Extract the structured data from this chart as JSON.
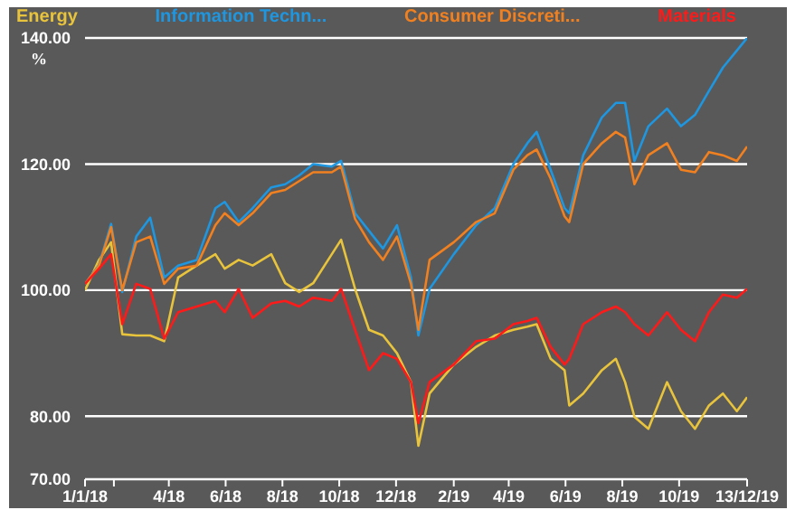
{
  "chart_data": {
    "type": "line",
    "ylabel": "%",
    "x": [
      "2018-01-01",
      "2018-01-16",
      "2018-01-29",
      "2018-02-10",
      "2018-02-25",
      "2018-03-12",
      "2018-03-27",
      "2018-04-11",
      "2018-05-01",
      "2018-05-21",
      "2018-05-31",
      "2018-06-15",
      "2018-06-30",
      "2018-07-20",
      "2018-08-04",
      "2018-08-19",
      "2018-09-03",
      "2018-09-23",
      "2018-10-03",
      "2018-10-18",
      "2018-11-02",
      "2018-11-17",
      "2018-12-02",
      "2018-12-17",
      "2018-12-25",
      "2019-01-06",
      "2019-02-01",
      "2019-02-25",
      "2019-03-17",
      "2019-04-06",
      "2019-04-21",
      "2019-05-01",
      "2019-05-16",
      "2019-05-31",
      "2019-06-05",
      "2019-06-20",
      "2019-07-10",
      "2019-07-25",
      "2019-08-04",
      "2019-08-14",
      "2019-08-29",
      "2019-09-18",
      "2019-10-03",
      "2019-10-18",
      "2019-11-02",
      "2019-11-17",
      "2019-12-02",
      "2019-12-13"
    ],
    "series": [
      {
        "name": "Energy",
        "color": "#e8c33c",
        "values": [
          100,
          104.8,
          107.6,
          93,
          92.8,
          92.8,
          91.9,
          102,
          103.9,
          105.7,
          103.4,
          104.8,
          103.9,
          105.7,
          101.1,
          99.7,
          101.1,
          105.7,
          108,
          100.2,
          93.7,
          92.8,
          90,
          85.4,
          75.3,
          83.6,
          88.2,
          91,
          92.8,
          93.7,
          94.2,
          94.6,
          89.1,
          87.3,
          81.7,
          83.6,
          87.3,
          89.1,
          85.4,
          79.9,
          78,
          85.4,
          80.8,
          78,
          81.7,
          83.6,
          80.8,
          83
        ]
      },
      {
        "name": "Information Techn...",
        "color": "#1e96e0",
        "values": [
          101,
          104,
          110.5,
          99.7,
          108.5,
          111.5,
          102,
          103.9,
          104.8,
          113,
          114,
          110.8,
          113,
          116.3,
          116.8,
          118.2,
          120,
          119.6,
          120.5,
          112.2,
          109.4,
          106.6,
          110.3,
          102,
          92.8,
          100.2,
          105.7,
          110.3,
          113,
          120,
          123.3,
          125.1,
          119.1,
          113,
          112.2,
          121.4,
          127.4,
          129.7,
          129.7,
          120.5,
          126,
          128.8,
          126,
          127.8,
          131.6,
          135.3,
          138,
          140
        ]
      },
      {
        "name": "Consumer Discreti...",
        "color": "#f08020",
        "values": [
          101,
          103.9,
          110,
          100,
          107.6,
          108.5,
          101,
          103.4,
          103.9,
          110.3,
          112.2,
          110.3,
          112.2,
          115.4,
          115.9,
          117.3,
          118.7,
          118.7,
          119.6,
          111.3,
          107.6,
          104.8,
          108.5,
          101,
          93.7,
          104.8,
          107.6,
          110.8,
          112.2,
          119.1,
          121.4,
          122.3,
          117.7,
          111.7,
          110.8,
          120,
          123.3,
          125.1,
          124.2,
          116.8,
          121.4,
          123.3,
          119.1,
          118.7,
          121.9,
          121.4,
          120.5,
          122.8
        ]
      },
      {
        "name": "Materials",
        "color": "#ff1a1a",
        "values": [
          101,
          103.4,
          105.7,
          94.6,
          101,
          100.2,
          92.3,
          96.5,
          97.4,
          98.3,
          96.5,
          100.2,
          95.6,
          97.9,
          98.3,
          97.4,
          98.8,
          98.3,
          100.2,
          93.7,
          87.3,
          90,
          89.1,
          85.4,
          78.9,
          85.4,
          88.2,
          91.9,
          92.3,
          94.6,
          95.1,
          95.6,
          91,
          88.2,
          89.1,
          94.6,
          96.5,
          97.4,
          96.5,
          94.6,
          92.8,
          96.5,
          93.7,
          91.9,
          96.5,
          99.3,
          98.8,
          100.2
        ]
      }
    ],
    "xlim": [
      "2018-01-01",
      "2019-12-13"
    ],
    "xticks": [
      {
        "value": "2018-01-01",
        "label": "1/1/18"
      },
      {
        "value": "2018-02-01",
        "label": null
      },
      {
        "value": "2018-04-01",
        "label": "4/18"
      },
      {
        "value": "2018-06-01",
        "label": "6/18"
      },
      {
        "value": "2018-08-01",
        "label": "8/18"
      },
      {
        "value": "2018-10-01",
        "label": "10/18"
      },
      {
        "value": "2018-12-01",
        "label": "12/18"
      },
      {
        "value": "2019-02-01",
        "label": "2/19"
      },
      {
        "value": "2019-04-01",
        "label": "4/19"
      },
      {
        "value": "2019-06-01",
        "label": "6/19"
      },
      {
        "value": "2019-08-01",
        "label": "8/19"
      },
      {
        "value": "2019-10-01",
        "label": "10/19"
      },
      {
        "value": "2019-12-13",
        "label": "13/12/19"
      }
    ],
    "ylim": [
      70,
      140
    ],
    "yticks": [
      {
        "value": 70,
        "label": "70.00"
      },
      {
        "value": 80,
        "label": "80.00"
      },
      {
        "value": 100,
        "label": "100.00"
      },
      {
        "value": 120,
        "label": "120.00"
      },
      {
        "value": 140,
        "label": "140.00"
      }
    ],
    "grid": "y",
    "legend": "top",
    "marker": "none",
    "line_style": "solid"
  }
}
